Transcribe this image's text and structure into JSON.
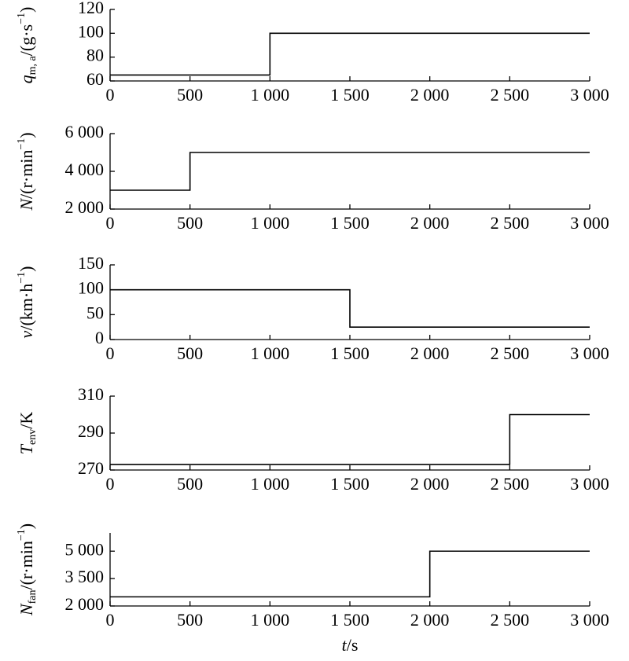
{
  "chart_data": [
    {
      "type": "line",
      "x": [
        0,
        1000,
        1000,
        3000
      ],
      "values": [
        65,
        65,
        100,
        100
      ],
      "color": "#000000",
      "xlim": [
        0,
        3000
      ],
      "xticks": [
        0,
        500,
        {
          "value": 1000,
          "label": "1 000"
        },
        {
          "value": 1500,
          "label": "1 500"
        },
        {
          "value": 2000,
          "label": "2 000"
        },
        {
          "value": 2500,
          "label": "2 500"
        },
        {
          "value": 3000,
          "label": "3 000"
        }
      ],
      "ylim": [
        60,
        120
      ],
      "yticks": [
        60,
        80,
        100,
        120
      ],
      "ylabel": [
        {
          "text": "q",
          "style": "italic"
        },
        {
          "text": "m, a",
          "style": "sub"
        },
        {
          "text": "/(g·s",
          "style": "normal"
        },
        {
          "text": "−1",
          "style": "sup"
        },
        {
          "text": ")",
          "style": "normal"
        }
      ]
    },
    {
      "type": "line",
      "x": [
        0,
        500,
        500,
        3000
      ],
      "values": [
        3000,
        3000,
        5000,
        5000
      ],
      "color": "#000000",
      "xlim": [
        0,
        3000
      ],
      "xticks": [
        0,
        500,
        {
          "value": 1000,
          "label": "1 000"
        },
        {
          "value": 1500,
          "label": "1 500"
        },
        {
          "value": 2000,
          "label": "2 000"
        },
        {
          "value": 2500,
          "label": "2 500"
        },
        {
          "value": 3000,
          "label": "3 000"
        }
      ],
      "ylim": [
        2000,
        6000
      ],
      "yticks": [
        {
          "value": 2000,
          "label": "2 000"
        },
        {
          "value": 4000,
          "label": "4 000"
        },
        {
          "value": 6000,
          "label": "6 000"
        }
      ],
      "ylabel": [
        {
          "text": "N",
          "style": "italic"
        },
        {
          "text": "/(r·min",
          "style": "normal"
        },
        {
          "text": "−1",
          "style": "sup"
        },
        {
          "text": ")",
          "style": "normal"
        }
      ]
    },
    {
      "type": "line",
      "x": [
        0,
        1500,
        1500,
        3000
      ],
      "values": [
        100,
        100,
        25,
        25
      ],
      "color": "#000000",
      "xlim": [
        0,
        3000
      ],
      "xticks": [
        0,
        500,
        {
          "value": 1000,
          "label": "1 000"
        },
        {
          "value": 1500,
          "label": "1 500"
        },
        {
          "value": 2000,
          "label": "2 000"
        },
        {
          "value": 2500,
          "label": "2 500"
        },
        {
          "value": 3000,
          "label": "3 000"
        }
      ],
      "ylim": [
        0,
        150
      ],
      "yticks": [
        0,
        50,
        100,
        150
      ],
      "ylabel": [
        {
          "text": "v",
          "style": "italic"
        },
        {
          "text": "/(km·h",
          "style": "normal"
        },
        {
          "text": "−1",
          "style": "sup"
        },
        {
          "text": ")",
          "style": "normal"
        }
      ]
    },
    {
      "type": "line",
      "x": [
        0,
        2500,
        2500,
        3000
      ],
      "values": [
        273,
        273,
        300,
        300
      ],
      "color": "#000000",
      "xlim": [
        0,
        3000
      ],
      "xticks": [
        0,
        500,
        {
          "value": 1000,
          "label": "1 000"
        },
        {
          "value": 1500,
          "label": "1 500"
        },
        {
          "value": 2000,
          "label": "2 000"
        },
        {
          "value": 2500,
          "label": "2 500"
        },
        {
          "value": 3000,
          "label": "3 000"
        }
      ],
      "ylim": [
        270,
        310
      ],
      "yticks": [
        270,
        290,
        310
      ],
      "ylabel": [
        {
          "text": "T",
          "style": "italic"
        },
        {
          "text": "env",
          "style": "sub"
        },
        {
          "text": "/K",
          "style": "normal"
        }
      ]
    },
    {
      "type": "line",
      "x": [
        0,
        2000,
        2000,
        3000
      ],
      "values": [
        2500,
        2500,
        5000,
        5000
      ],
      "color": "#000000",
      "xlim": [
        0,
        3000
      ],
      "xticks": [
        0,
        500,
        {
          "value": 1000,
          "label": "1 000"
        },
        {
          "value": 1500,
          "label": "1 500"
        },
        {
          "value": 2000,
          "label": "2 000"
        },
        {
          "value": 2500,
          "label": "2 500"
        },
        {
          "value": 3000,
          "label": "3 000"
        }
      ],
      "ylim": [
        2000,
        6000
      ],
      "yticks": [
        {
          "value": 2000,
          "label": "2 000"
        },
        {
          "value": 3500,
          "label": "3 500"
        },
        {
          "value": 5000,
          "label": "5 000"
        }
      ],
      "ylabel": [
        {
          "text": "N",
          "style": "italic"
        },
        {
          "text": "fan",
          "style": "sub"
        },
        {
          "text": "/(r·min",
          "style": "normal"
        },
        {
          "text": "−1",
          "style": "sup"
        },
        {
          "text": ")",
          "style": "normal"
        }
      ],
      "xlabel": [
        {
          "text": "t",
          "style": "italic"
        },
        {
          "text": "/s",
          "style": "normal"
        }
      ]
    }
  ]
}
